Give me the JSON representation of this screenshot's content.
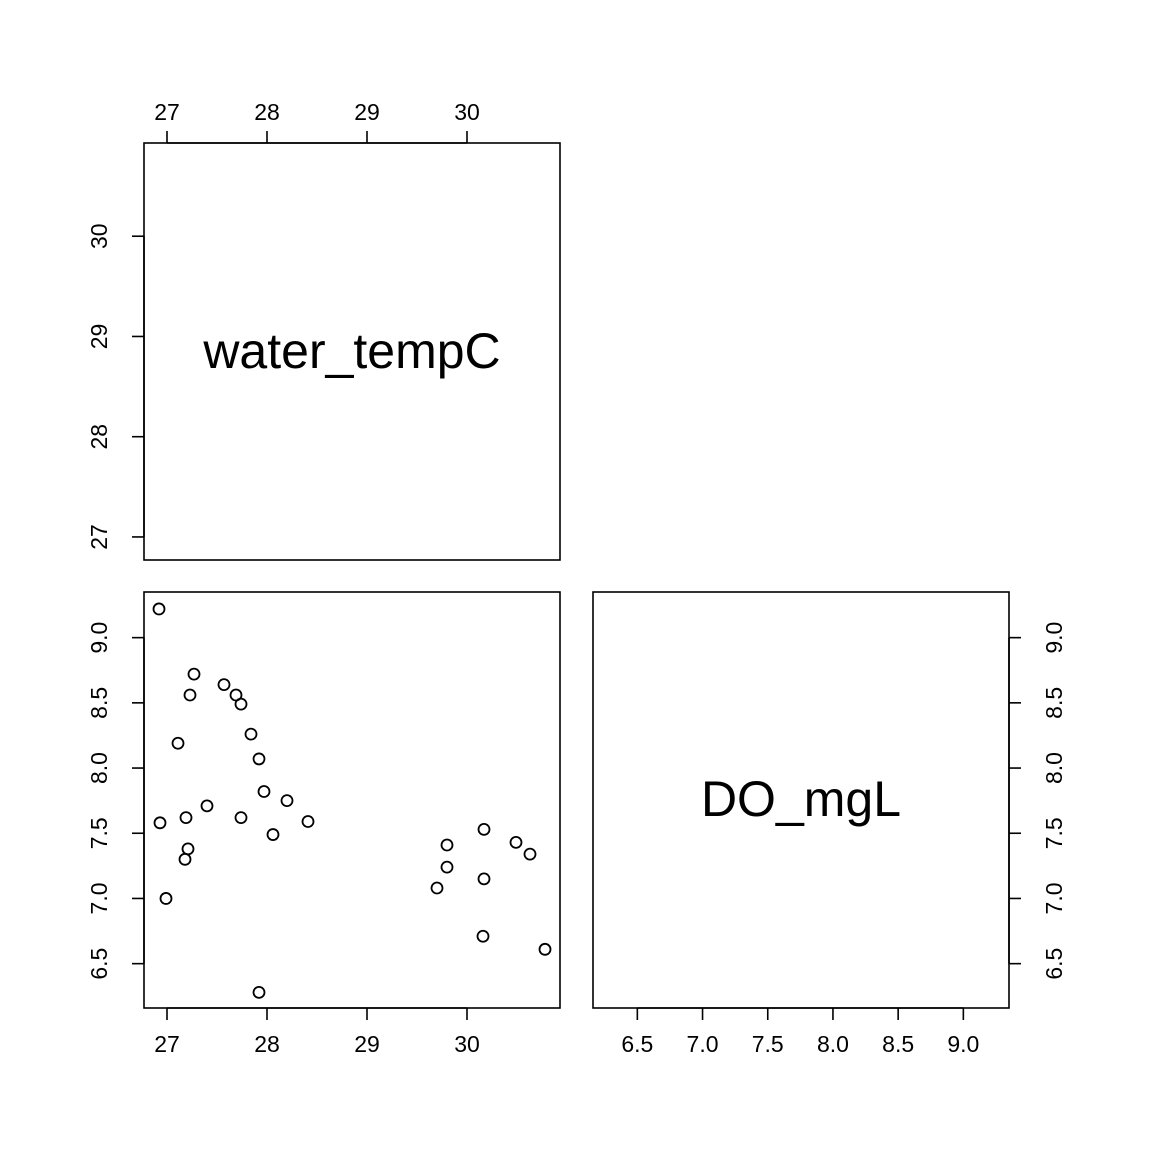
{
  "chart_data": {
    "type": "scatter",
    "variables": [
      "water_tempC",
      "DO_mgL"
    ],
    "axes": {
      "water_tempC": {
        "ticks": [
          27,
          28,
          29,
          30
        ],
        "tick_labels": [
          "27",
          "28",
          "29",
          "30"
        ],
        "range": [
          26.77,
          30.93
        ]
      },
      "DO_mgL": {
        "ticks": [
          6.5,
          7.0,
          7.5,
          8.0,
          8.5,
          9.0
        ],
        "tick_labels": [
          "6.5",
          "7.0",
          "7.5",
          "8.0",
          "8.5",
          "9.0"
        ],
        "range": [
          6.16,
          9.35
        ]
      }
    },
    "points": [
      {
        "x": 26.92,
        "y": 9.22
      },
      {
        "x": 27.27,
        "y": 8.72
      },
      {
        "x": 27.57,
        "y": 8.64
      },
      {
        "x": 27.23,
        "y": 8.56
      },
      {
        "x": 27.69,
        "y": 8.56
      },
      {
        "x": 27.74,
        "y": 8.49
      },
      {
        "x": 27.84,
        "y": 8.26
      },
      {
        "x": 27.11,
        "y": 8.19
      },
      {
        "x": 27.92,
        "y": 8.07
      },
      {
        "x": 27.97,
        "y": 7.82
      },
      {
        "x": 28.2,
        "y": 7.75
      },
      {
        "x": 27.4,
        "y": 7.71
      },
      {
        "x": 27.19,
        "y": 7.62
      },
      {
        "x": 27.74,
        "y": 7.62
      },
      {
        "x": 28.41,
        "y": 7.59
      },
      {
        "x": 26.93,
        "y": 7.58
      },
      {
        "x": 28.06,
        "y": 7.49
      },
      {
        "x": 27.21,
        "y": 7.38
      },
      {
        "x": 27.18,
        "y": 7.3
      },
      {
        "x": 26.99,
        "y": 7.0
      },
      {
        "x": 27.92,
        "y": 6.28
      },
      {
        "x": 30.17,
        "y": 7.53
      },
      {
        "x": 30.49,
        "y": 7.43
      },
      {
        "x": 29.8,
        "y": 7.41
      },
      {
        "x": 30.63,
        "y": 7.34
      },
      {
        "x": 29.8,
        "y": 7.24
      },
      {
        "x": 30.17,
        "y": 7.15
      },
      {
        "x": 29.7,
        "y": 7.08
      },
      {
        "x": 30.16,
        "y": 6.71
      },
      {
        "x": 30.78,
        "y": 6.61
      }
    ]
  }
}
